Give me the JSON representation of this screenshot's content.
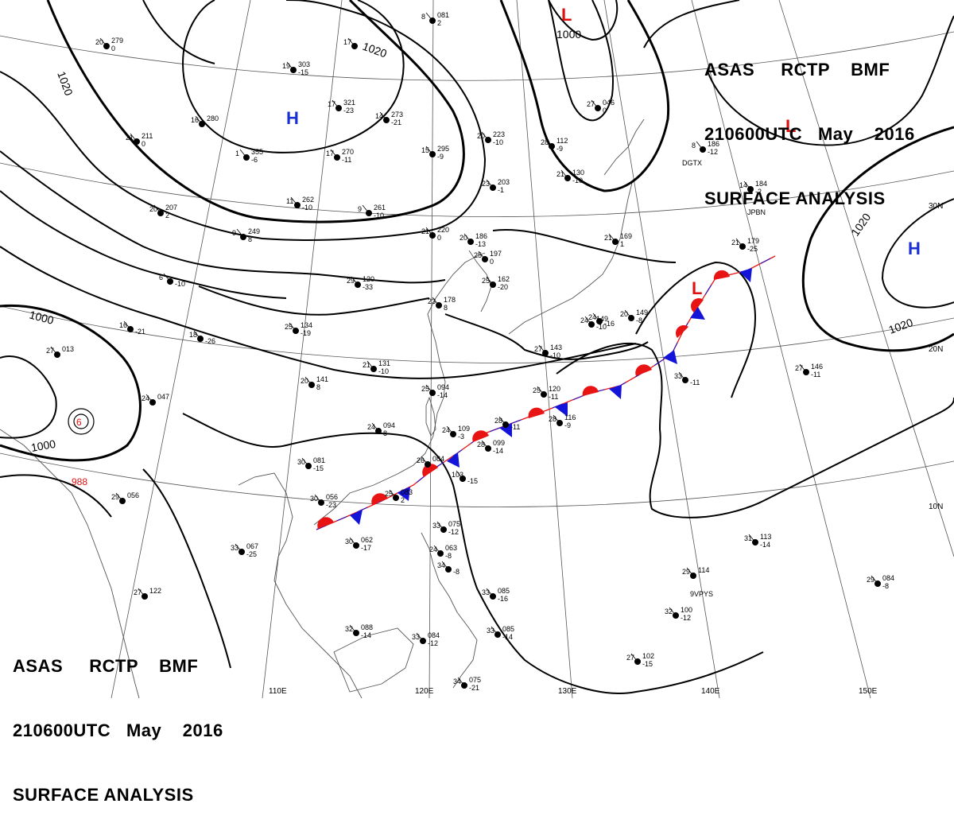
{
  "header": {
    "product": "ASAS",
    "station": "RCTP",
    "agency": "BMF",
    "datetime": "210600UTC",
    "month": "May",
    "year": "2016",
    "chart_name": "SURFACE ANALYSIS"
  },
  "pressure_centers": [
    {
      "type": "H",
      "color": "#1a2fd6"
    },
    {
      "type": "H",
      "color": "#1a2fd6"
    },
    {
      "type": "L",
      "color": "#e01010"
    },
    {
      "type": "L",
      "color": "#e01010"
    },
    {
      "type": "L",
      "color": "#e01010"
    }
  ],
  "isobar_labels": [
    "1020",
    "1020",
    "1000",
    "1000",
    "1000",
    "1020",
    "1020"
  ],
  "low_pressure_value": "988",
  "latitude_labels": [
    "30N",
    "20N",
    "10N"
  ],
  "longitude_labels": [
    "110E",
    "120E",
    "130E",
    "140E",
    "150E"
  ],
  "station_ids": [
    "DGTX",
    "JPBN",
    "9VPYS"
  ],
  "stations": [
    {
      "t": "8",
      "p": "081",
      "d": "2"
    },
    {
      "t": "17",
      "p": "",
      "d": ""
    },
    {
      "t": "19",
      "p": "303",
      "d": "-15"
    },
    {
      "t": "20",
      "p": "279",
      "d": "0"
    },
    {
      "t": "17",
      "p": "321",
      "d": "-23"
    },
    {
      "t": "16",
      "p": "280",
      "d": ""
    },
    {
      "t": "21",
      "p": "211",
      "d": "0"
    },
    {
      "t": "1",
      "p": "355",
      "d": "-6"
    },
    {
      "t": "17",
      "p": "270",
      "d": "-11"
    },
    {
      "t": "14",
      "p": "273",
      "d": "-21"
    },
    {
      "t": "15",
      "p": "295",
      "d": "-9"
    },
    {
      "t": "20",
      "p": "223",
      "d": "-10"
    },
    {
      "t": "23",
      "p": "203",
      "d": "-1"
    },
    {
      "t": "27",
      "p": "046",
      "d": "0"
    },
    {
      "t": "28",
      "p": "112",
      "d": "-9"
    },
    {
      "t": "21",
      "p": "130",
      "d": "-10"
    },
    {
      "t": "8",
      "p": "186",
      "d": "-12"
    },
    {
      "t": "14",
      "p": "184",
      "d": "-2"
    },
    {
      "t": "11",
      "p": "262",
      "d": "-10"
    },
    {
      "t": "9",
      "p": "261",
      "d": "-10"
    },
    {
      "t": "9",
      "p": "249",
      "d": "8"
    },
    {
      "t": "20",
      "p": "207",
      "d": "2"
    },
    {
      "t": "21",
      "p": "220",
      "d": "0"
    },
    {
      "t": "20",
      "p": "186",
      "d": "-13"
    },
    {
      "t": "21",
      "p": "169",
      "d": "1"
    },
    {
      "t": "21",
      "p": "179",
      "d": "-25"
    },
    {
      "t": "25",
      "p": "197",
      "d": "0"
    },
    {
      "t": "29",
      "p": "120",
      "d": "-33"
    },
    {
      "t": "6",
      "p": "",
      "d": "-10"
    },
    {
      "t": "23",
      "p": "178",
      "d": "8"
    },
    {
      "t": "25",
      "p": "162",
      "d": "-20"
    },
    {
      "t": "27",
      "p": "013",
      "d": ""
    },
    {
      "t": "16",
      "p": "",
      "d": "-21"
    },
    {
      "t": "18",
      "p": "",
      "d": "-26"
    },
    {
      "t": "25",
      "p": "134",
      "d": "-19"
    },
    {
      "t": "24",
      "p": "149",
      "d": "-10"
    },
    {
      "t": "24",
      "p": "",
      "d": "-16"
    },
    {
      "t": "20",
      "p": "149",
      "d": "-8"
    },
    {
      "t": "27",
      "p": "143",
      "d": "-10"
    },
    {
      "t": "21",
      "p": "131",
      "d": "-10"
    },
    {
      "t": "20",
      "p": "141",
      "d": "8"
    },
    {
      "t": "24",
      "p": "047",
      "d": ""
    },
    {
      "t": "25",
      "p": "094",
      "d": "-14"
    },
    {
      "t": "25",
      "p": "120",
      "d": "-11"
    },
    {
      "t": "28",
      "p": "",
      "d": "-11"
    },
    {
      "t": "28",
      "p": "116",
      "d": "-9"
    },
    {
      "t": "33",
      "p": "",
      "d": "-11"
    },
    {
      "t": "27",
      "p": "146",
      "d": "-11"
    },
    {
      "t": "24",
      "p": "094",
      "d": "8"
    },
    {
      "t": "24",
      "p": "109",
      "d": "-3"
    },
    {
      "t": "28",
      "p": "099",
      "d": "-14"
    },
    {
      "t": "26",
      "p": "084",
      "d": ""
    },
    {
      "t": "30",
      "p": "081",
      "d": "-15"
    },
    {
      "t": "103",
      "p": "",
      "d": "-15"
    },
    {
      "t": "29",
      "p": "056",
      "d": ""
    },
    {
      "t": "25",
      "p": "083",
      "d": "2"
    },
    {
      "t": "30",
      "p": "056",
      "d": "-23"
    },
    {
      "t": "30",
      "p": "062",
      "d": "-17"
    },
    {
      "t": "33",
      "p": "067",
      "d": "-25"
    },
    {
      "t": "33",
      "p": "075",
      "d": "-12"
    },
    {
      "t": "24",
      "p": "063",
      "d": "-8"
    },
    {
      "t": "34",
      "p": "",
      "d": "-8"
    },
    {
      "t": "31",
      "p": "113",
      "d": "-14"
    },
    {
      "t": "29",
      "p": "114",
      "d": ""
    },
    {
      "t": "29",
      "p": "084",
      "d": "-8"
    },
    {
      "t": "33",
      "p": "085",
      "d": "-16"
    },
    {
      "t": "27",
      "p": "122",
      "d": ""
    },
    {
      "t": "32",
      "p": "088",
      "d": "-14"
    },
    {
      "t": "33",
      "p": "084",
      "d": "-12"
    },
    {
      "t": "33",
      "p": "085",
      "d": "-14"
    },
    {
      "t": "32",
      "p": "100",
      "d": "-12"
    },
    {
      "t": "27",
      "p": "102",
      "d": "-15"
    },
    {
      "t": "34",
      "p": "075",
      "d": "-21"
    }
  ],
  "colors": {
    "warm_front": "#e81414",
    "cold_front": "#1414d8",
    "isobar": "#000000",
    "geography": "#555555",
    "grid": "#444444"
  }
}
